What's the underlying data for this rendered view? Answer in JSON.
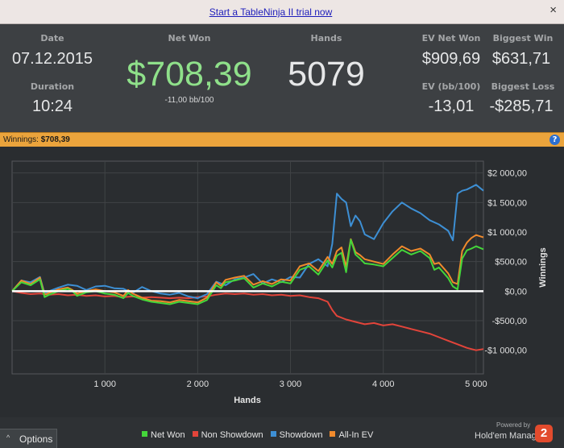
{
  "banner": {
    "link_text": "Start a TableNinja II trial now",
    "close_label": "×"
  },
  "stats": {
    "date_label": "Date",
    "date": "07.12.2015",
    "duration_label": "Duration",
    "duration": "10:24",
    "net_won_label": "Net Won",
    "net_won": "$708,39",
    "net_won_bb": "-11,00 bb/100",
    "hands_label": "Hands",
    "hands": "5079",
    "ev_net_won_label": "EV Net Won",
    "ev_net_won": "$909,69",
    "biggest_win_label": "Biggest Win",
    "biggest_win": "$631,71",
    "ev_bb_label": "EV (bb/100)",
    "ev_bb": "-13,01",
    "biggest_loss_label": "Biggest Loss",
    "biggest_loss": "-$285,71",
    "net_won_color": "#8fe08a"
  },
  "strip": {
    "label": "Winnings:",
    "value": "$708,39",
    "help_icon": "?"
  },
  "chart_data": {
    "type": "line",
    "xlabel": "Hands",
    "ylabel": "Winnings",
    "xlim": [
      0,
      5079
    ],
    "ylim": [
      -1400,
      2200
    ],
    "x_ticks": [
      1000,
      2000,
      3000,
      4000,
      5000
    ],
    "x_tick_labels": [
      "1 000",
      "2 000",
      "3 000",
      "4 000",
      "5 000"
    ],
    "y_ticks": [
      2000,
      1500,
      1000,
      500,
      0,
      -500,
      -1000
    ],
    "y_tick_labels": [
      "$2 000,00",
      "$1 500,00",
      "$1 000,00",
      "$500,00",
      "$0,00",
      "-$500,00",
      "-$1 000,00"
    ],
    "grid": true,
    "legend_position": "bottom",
    "series": [
      {
        "name": "Net Won",
        "color": "#44d63a",
        "x": [
          0,
          100,
          200,
          300,
          350,
          400,
          500,
          600,
          650,
          700,
          800,
          900,
          1000,
          1100,
          1200,
          1250,
          1300,
          1400,
          1500,
          1600,
          1700,
          1800,
          1900,
          2000,
          2100,
          2200,
          2250,
          2300,
          2400,
          2500,
          2600,
          2700,
          2800,
          2900,
          3000,
          3100,
          3200,
          3300,
          3400,
          3450,
          3500,
          3550,
          3600,
          3650,
          3700,
          3750,
          3800,
          3900,
          4000,
          4100,
          4200,
          4300,
          4400,
          4500,
          4550,
          4600,
          4700,
          4750,
          4800,
          4850,
          4900,
          4950,
          5000,
          5079
        ],
        "y": [
          0,
          150,
          100,
          200,
          -100,
          -60,
          0,
          40,
          0,
          -80,
          -20,
          0,
          -40,
          -60,
          -120,
          -30,
          -80,
          -140,
          -180,
          -200,
          -220,
          -180,
          -200,
          -220,
          -150,
          100,
          50,
          150,
          180,
          220,
          60,
          130,
          80,
          160,
          130,
          360,
          420,
          280,
          520,
          400,
          600,
          650,
          320,
          870,
          620,
          550,
          470,
          450,
          420,
          560,
          700,
          620,
          680,
          560,
          360,
          400,
          220,
          80,
          30,
          550,
          690,
          720,
          760,
          708
        ]
      },
      {
        "name": "Non Showdown",
        "color": "#e2443a",
        "x": [
          0,
          100,
          200,
          300,
          400,
          500,
          600,
          700,
          800,
          900,
          1000,
          1100,
          1200,
          1300,
          1400,
          1500,
          1600,
          1700,
          1800,
          1900,
          2000,
          2100,
          2200,
          2300,
          2400,
          2500,
          2600,
          2700,
          2800,
          2900,
          3000,
          3100,
          3200,
          3300,
          3400,
          3450,
          3500,
          3600,
          3700,
          3800,
          3900,
          4000,
          4100,
          4200,
          4300,
          4400,
          4500,
          4600,
          4700,
          4800,
          4900,
          5000,
          5079
        ],
        "y": [
          0,
          -30,
          -50,
          -40,
          -60,
          -50,
          -70,
          -60,
          -80,
          -70,
          -90,
          -80,
          -100,
          -90,
          -110,
          -100,
          -110,
          -120,
          -110,
          -120,
          -100,
          -90,
          -60,
          -40,
          -50,
          -40,
          -60,
          -50,
          -70,
          -60,
          -80,
          -70,
          -100,
          -120,
          -180,
          -320,
          -420,
          -480,
          -520,
          -560,
          -540,
          -580,
          -560,
          -600,
          -640,
          -680,
          -720,
          -780,
          -840,
          -900,
          -960,
          -1000,
          -980
        ]
      },
      {
        "name": "Showdown",
        "color": "#3d8fd4",
        "x": [
          0,
          100,
          200,
          300,
          350,
          400,
          500,
          600,
          700,
          800,
          900,
          1000,
          1100,
          1200,
          1300,
          1400,
          1500,
          1600,
          1700,
          1800,
          1900,
          2000,
          2100,
          2200,
          2300,
          2400,
          2500,
          2600,
          2700,
          2800,
          2900,
          3000,
          3100,
          3200,
          3300,
          3400,
          3450,
          3500,
          3550,
          3600,
          3650,
          3700,
          3750,
          3800,
          3900,
          4000,
          4100,
          4200,
          4300,
          4400,
          4500,
          4600,
          4700,
          4750,
          4800,
          4850,
          4900,
          4950,
          5000,
          5079
        ],
        "y": [
          0,
          180,
          150,
          240,
          -40,
          0,
          60,
          110,
          90,
          20,
          80,
          90,
          50,
          40,
          -30,
          70,
          0,
          -40,
          -60,
          -30,
          -90,
          -120,
          -50,
          160,
          100,
          200,
          230,
          290,
          130,
          200,
          150,
          240,
          230,
          460,
          540,
          420,
          800,
          1650,
          1560,
          1500,
          1100,
          1280,
          1180,
          960,
          880,
          1150,
          1350,
          1500,
          1400,
          1320,
          1200,
          1130,
          1020,
          860,
          1650,
          1700,
          1720,
          1760,
          1800,
          1700
        ]
      },
      {
        "name": "All-In EV",
        "color": "#f08a2c",
        "x": [
          0,
          100,
          200,
          300,
          350,
          400,
          500,
          600,
          650,
          700,
          800,
          900,
          1000,
          1100,
          1200,
          1250,
          1300,
          1400,
          1500,
          1600,
          1700,
          1800,
          1900,
          2000,
          2100,
          2200,
          2250,
          2300,
          2400,
          2500,
          2600,
          2700,
          2800,
          2900,
          3000,
          3100,
          3200,
          3300,
          3400,
          3450,
          3500,
          3550,
          3600,
          3650,
          3700,
          3750,
          3800,
          3900,
          4000,
          4100,
          4200,
          4300,
          4400,
          4500,
          4550,
          4600,
          4700,
          4750,
          4800,
          4850,
          4900,
          4950,
          5000,
          5079
        ],
        "y": [
          0,
          180,
          120,
          230,
          -60,
          -30,
          30,
          60,
          20,
          -40,
          0,
          30,
          0,
          -20,
          -80,
          20,
          -40,
          -110,
          -160,
          -170,
          -190,
          -150,
          -170,
          -190,
          -110,
          150,
          90,
          190,
          230,
          260,
          110,
          170,
          120,
          200,
          180,
          420,
          470,
          340,
          580,
          460,
          680,
          740,
          410,
          880,
          660,
          610,
          540,
          500,
          460,
          620,
          760,
          680,
          720,
          620,
          460,
          480,
          300,
          150,
          120,
          680,
          820,
          900,
          950,
          910
        ]
      }
    ]
  },
  "bottom": {
    "options_label": "Options",
    "options_caret": "^",
    "powered_by": "Powered by",
    "brand_name": "Hold'em Manager",
    "brand_logo": "2"
  }
}
